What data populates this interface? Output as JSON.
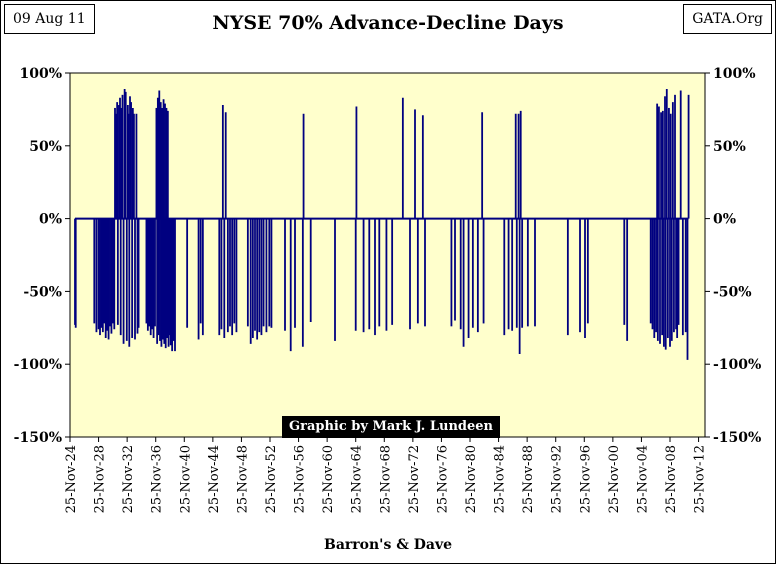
{
  "header": {
    "date": "09 Aug 11",
    "title": "NYSE 70% Advance-Decline  Days",
    "source": "GATA.Org"
  },
  "credit": "Graphic by Mark J. Lundeen",
  "colors": {
    "plot_background": "#ffffcc",
    "bars": "#000080",
    "text": "#000000"
  },
  "chart_data": {
    "type": "bar",
    "title": "NYSE 70% Advance-Decline  Days",
    "xlabel": "Barron's & Dave",
    "ylabel": "",
    "ylim": [
      -1.5,
      1.0
    ],
    "xlim": [
      1924.9,
      2013.8
    ],
    "y_ticks": [
      {
        "value": 1.0,
        "label": "100%"
      },
      {
        "value": 0.5,
        "label": "50%"
      },
      {
        "value": 0.0,
        "label": "0%"
      },
      {
        "value": -0.5,
        "label": "-50%"
      },
      {
        "value": -1.0,
        "label": "-100%"
      },
      {
        "value": -1.5,
        "label": "-150%"
      }
    ],
    "x_ticks": [
      {
        "year": 1924.9,
        "label": "25-Nov-24"
      },
      {
        "year": 1928.9,
        "label": "25-Nov-28"
      },
      {
        "year": 1932.9,
        "label": "25-Nov-32"
      },
      {
        "year": 1936.9,
        "label": "25-Nov-36"
      },
      {
        "year": 1940.9,
        "label": "25-Nov-40"
      },
      {
        "year": 1944.9,
        "label": "25-Nov-44"
      },
      {
        "year": 1948.9,
        "label": "25-Nov-48"
      },
      {
        "year": 1952.9,
        "label": "25-Nov-52"
      },
      {
        "year": 1956.9,
        "label": "25-Nov-56"
      },
      {
        "year": 1960.9,
        "label": "25-Nov-60"
      },
      {
        "year": 1964.9,
        "label": "25-Nov-64"
      },
      {
        "year": 1968.9,
        "label": "25-Nov-68"
      },
      {
        "year": 1972.9,
        "label": "25-Nov-72"
      },
      {
        "year": 1976.9,
        "label": "25-Nov-76"
      },
      {
        "year": 1980.9,
        "label": "25-Nov-80"
      },
      {
        "year": 1984.9,
        "label": "25-Nov-84"
      },
      {
        "year": 1988.9,
        "label": "25-Nov-88"
      },
      {
        "year": 1992.9,
        "label": "25-Nov-92"
      },
      {
        "year": 1996.9,
        "label": "25-Nov-96"
      },
      {
        "year": 2000.9,
        "label": "25-Nov-00"
      },
      {
        "year": 2004.9,
        "label": "25-Nov-04"
      },
      {
        "year": 2008.9,
        "label": "25-Nov-08"
      },
      {
        "year": 2012.9,
        "label": "25-Nov-12"
      }
    ],
    "grid": false,
    "legend": "none",
    "points": [
      [
        1925.6,
        -0.73
      ],
      [
        1925.7,
        -0.75
      ],
      [
        1928.3,
        -0.72
      ],
      [
        1928.6,
        -0.78
      ],
      [
        1928.9,
        -0.76
      ],
      [
        1929.1,
        -0.8
      ],
      [
        1929.3,
        -0.75
      ],
      [
        1929.5,
        -0.78
      ],
      [
        1929.7,
        -0.72
      ],
      [
        1929.9,
        -0.82
      ],
      [
        1930.1,
        -0.77
      ],
      [
        1930.3,
        -0.83
      ],
      [
        1930.5,
        -0.74
      ],
      [
        1930.7,
        -0.79
      ],
      [
        1930.9,
        -0.72
      ],
      [
        1931.1,
        -0.76
      ],
      [
        1931.2,
        0.76
      ],
      [
        1931.35,
        0.72
      ],
      [
        1931.5,
        0.8
      ],
      [
        1931.6,
        -0.73
      ],
      [
        1931.75,
        0.78
      ],
      [
        1931.9,
        0.83
      ],
      [
        1932.0,
        -0.8
      ],
      [
        1932.1,
        0.76
      ],
      [
        1932.25,
        0.85
      ],
      [
        1932.4,
        -0.86
      ],
      [
        1932.55,
        0.89
      ],
      [
        1932.7,
        0.87
      ],
      [
        1932.85,
        -0.84
      ],
      [
        1933.0,
        0.78
      ],
      [
        1933.1,
        0.72
      ],
      [
        1933.2,
        -0.88
      ],
      [
        1933.3,
        0.84
      ],
      [
        1933.45,
        0.8
      ],
      [
        1933.6,
        -0.82
      ],
      [
        1933.7,
        0.76
      ],
      [
        1933.85,
        0.72
      ],
      [
        1934.0,
        -0.83
      ],
      [
        1934.2,
        0.72
      ],
      [
        1934.35,
        -0.79
      ],
      [
        1934.5,
        -0.75
      ],
      [
        1935.6,
        -0.72
      ],
      [
        1935.8,
        -0.77
      ],
      [
        1936.0,
        -0.74
      ],
      [
        1936.2,
        -0.8
      ],
      [
        1936.4,
        -0.76
      ],
      [
        1936.6,
        -0.82
      ],
      [
        1936.8,
        -0.74
      ],
      [
        1937.0,
        0.76
      ],
      [
        1937.1,
        -0.86
      ],
      [
        1937.2,
        0.83
      ],
      [
        1937.3,
        -0.8
      ],
      [
        1937.4,
        0.88
      ],
      [
        1937.5,
        -0.84
      ],
      [
        1937.6,
        0.8
      ],
      [
        1937.7,
        -0.88
      ],
      [
        1937.8,
        0.76
      ],
      [
        1937.9,
        -0.83
      ],
      [
        1938.0,
        0.82
      ],
      [
        1938.1,
        -0.86
      ],
      [
        1938.2,
        0.79
      ],
      [
        1938.3,
        -0.89
      ],
      [
        1938.4,
        0.76
      ],
      [
        1938.5,
        -0.82
      ],
      [
        1938.6,
        0.74
      ],
      [
        1938.7,
        -0.88
      ],
      [
        1938.85,
        -0.8
      ],
      [
        1939.0,
        -0.87
      ],
      [
        1939.2,
        -0.91
      ],
      [
        1939.4,
        -0.84
      ],
      [
        1939.6,
        -0.91
      ],
      [
        1941.3,
        -0.75
      ],
      [
        1942.9,
        -0.83
      ],
      [
        1943.2,
        -0.72
      ],
      [
        1943.5,
        -0.8
      ],
      [
        1945.8,
        -0.8
      ],
      [
        1946.1,
        -0.76
      ],
      [
        1946.3,
        0.78
      ],
      [
        1946.5,
        -0.82
      ],
      [
        1946.7,
        0.73
      ],
      [
        1947.0,
        -0.78
      ],
      [
        1947.3,
        -0.74
      ],
      [
        1947.6,
        -0.8
      ],
      [
        1947.9,
        -0.72
      ],
      [
        1948.2,
        -0.78
      ],
      [
        1949.8,
        -0.74
      ],
      [
        1950.2,
        -0.86
      ],
      [
        1950.5,
        -0.82
      ],
      [
        1950.8,
        -0.77
      ],
      [
        1951.1,
        -0.83
      ],
      [
        1951.4,
        -0.78
      ],
      [
        1951.7,
        -0.8
      ],
      [
        1952.0,
        -0.74
      ],
      [
        1952.4,
        -0.78
      ],
      [
        1952.8,
        -0.74
      ],
      [
        1953.1,
        -0.75
      ],
      [
        1955.0,
        -0.77
      ],
      [
        1955.8,
        -0.91
      ],
      [
        1956.4,
        -0.75
      ],
      [
        1957.5,
        -0.88
      ],
      [
        1957.6,
        0.72
      ],
      [
        1958.6,
        -0.71
      ],
      [
        1962.0,
        -0.84
      ],
      [
        1964.9,
        -0.77
      ],
      [
        1965.0,
        0.77
      ],
      [
        1966.0,
        -0.78
      ],
      [
        1966.8,
        -0.76
      ],
      [
        1967.6,
        -0.8
      ],
      [
        1968.2,
        -0.74
      ],
      [
        1969.2,
        -0.77
      ],
      [
        1970.0,
        -0.73
      ],
      [
        1971.5,
        0.83
      ],
      [
        1972.5,
        -0.76
      ],
      [
        1973.2,
        0.75
      ],
      [
        1973.6,
        -0.72
      ],
      [
        1974.3,
        0.71
      ],
      [
        1974.6,
        -0.74
      ],
      [
        1978.3,
        -0.74
      ],
      [
        1978.8,
        -0.7
      ],
      [
        1979.6,
        -0.76
      ],
      [
        1980.0,
        -0.88
      ],
      [
        1980.7,
        -0.82
      ],
      [
        1981.3,
        -0.75
      ],
      [
        1982.0,
        -0.78
      ],
      [
        1982.6,
        0.73
      ],
      [
        1982.8,
        -0.72
      ],
      [
        1985.7,
        -0.8
      ],
      [
        1986.3,
        -0.76
      ],
      [
        1986.8,
        -0.77
      ],
      [
        1987.3,
        0.72
      ],
      [
        1987.45,
        -0.75
      ],
      [
        1987.7,
        0.72
      ],
      [
        1987.85,
        -0.93
      ],
      [
        1988.0,
        0.74
      ],
      [
        1988.2,
        -0.75
      ],
      [
        1989.0,
        -0.74
      ],
      [
        1990.0,
        -0.74
      ],
      [
        1994.6,
        -0.8
      ],
      [
        1996.3,
        -0.78
      ],
      [
        1997.0,
        -0.82
      ],
      [
        1997.4,
        -0.72
      ],
      [
        2002.5,
        -0.73
      ],
      [
        2002.9,
        -0.84
      ],
      [
        2006.2,
        -0.72
      ],
      [
        2006.45,
        -0.76
      ],
      [
        2006.7,
        -0.82
      ],
      [
        2006.95,
        -0.78
      ],
      [
        2007.1,
        0.79
      ],
      [
        2007.2,
        -0.84
      ],
      [
        2007.35,
        0.77
      ],
      [
        2007.5,
        -0.86
      ],
      [
        2007.65,
        0.73
      ],
      [
        2007.8,
        -0.8
      ],
      [
        2007.9,
        0.74
      ],
      [
        2008.05,
        -0.88
      ],
      [
        2008.2,
        0.84
      ],
      [
        2008.3,
        -0.9
      ],
      [
        2008.45,
        0.89
      ],
      [
        2008.6,
        -0.82
      ],
      [
        2008.75,
        0.76
      ],
      [
        2008.9,
        -0.88
      ],
      [
        2009.0,
        0.72
      ],
      [
        2009.15,
        -0.84
      ],
      [
        2009.3,
        0.8
      ],
      [
        2009.45,
        -0.78
      ],
      [
        2009.6,
        0.85
      ],
      [
        2009.75,
        -0.76
      ],
      [
        2009.9,
        -0.82
      ],
      [
        2010.1,
        -0.73
      ],
      [
        2010.4,
        0.88
      ],
      [
        2010.7,
        -0.8
      ],
      [
        2011.1,
        -0.78
      ],
      [
        2011.35,
        -0.97
      ],
      [
        2011.5,
        0.85
      ]
    ]
  }
}
